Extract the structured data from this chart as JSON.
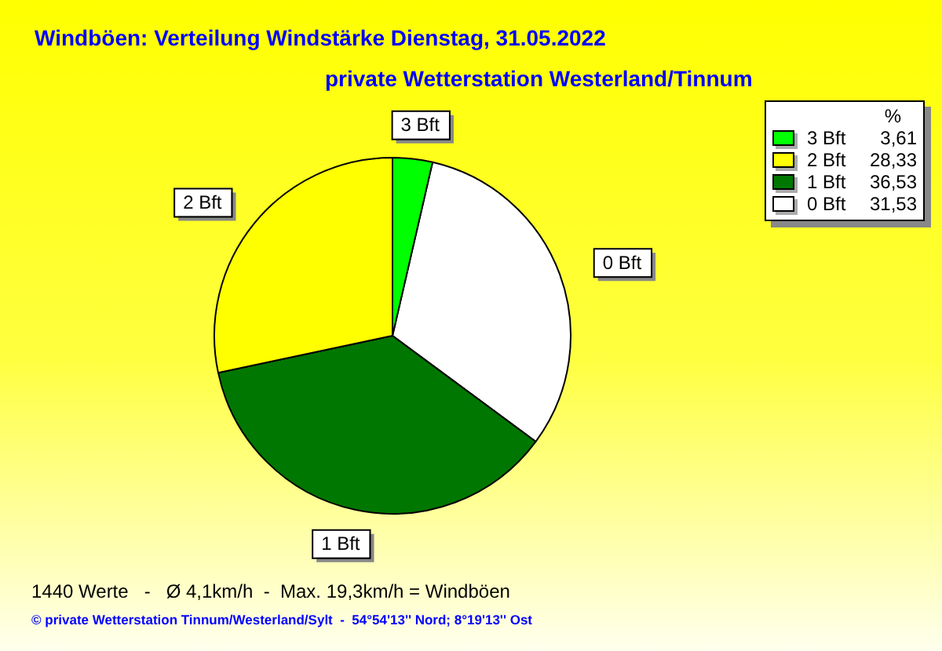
{
  "chart_data": {
    "type": "pie",
    "title": "Windböen: Verteilung Windstärke  Dienstag, 31.05.2022",
    "subtitle": "private Wetterstation Westerland/Tinnum",
    "categories": [
      "3 Bft",
      "2 Bft",
      "1 Bft",
      "0 Bft"
    ],
    "values": [
      3.61,
      28.33,
      36.53,
      31.53
    ],
    "value_labels": [
      "3,61",
      "28,33",
      "36,53",
      "31,53"
    ],
    "colors": [
      "#00ff00",
      "#ffff00",
      "#007700",
      "#ffffff"
    ],
    "legend": "top right",
    "legend_title": "%",
    "annotations": [
      "1440 Werte   -   Ø 4,1km/h  -  Max. 19,3km/h = Windböen",
      "© private Wetterstation Tinnum/Westerland/Sylt  -  54°54'13'' Nord; 8°19'13'' Ost"
    ]
  }
}
